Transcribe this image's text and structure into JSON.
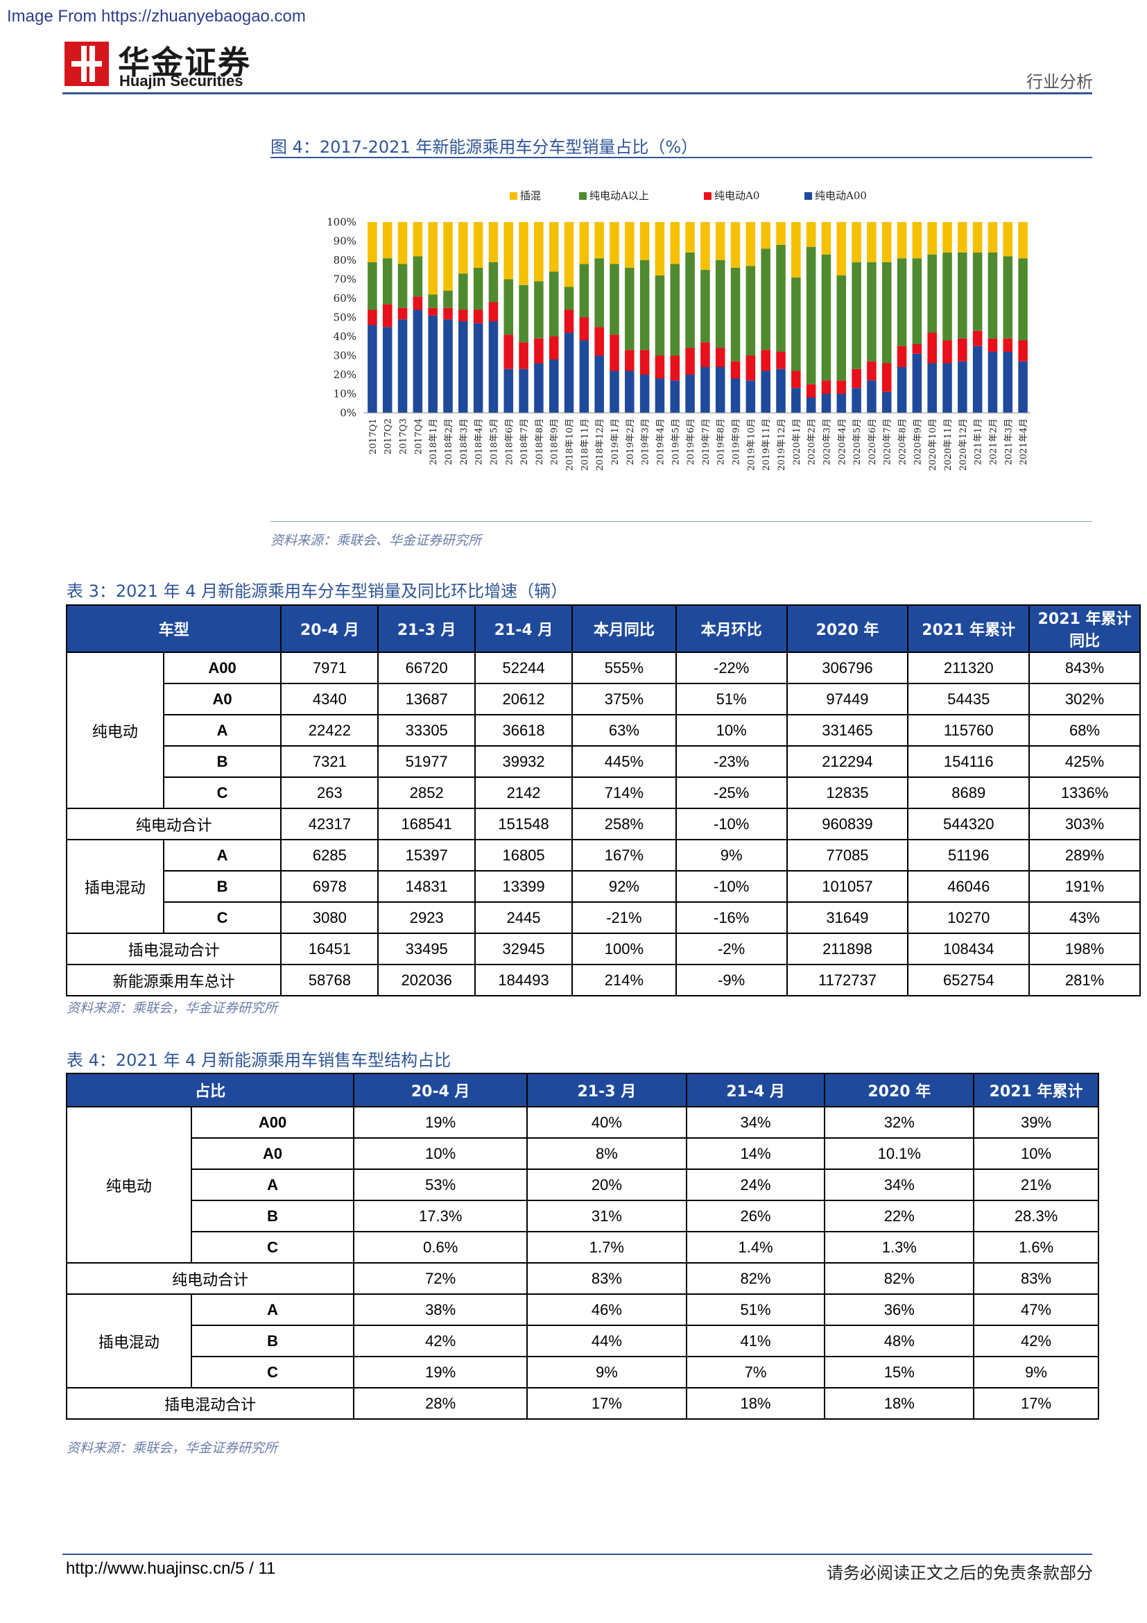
{
  "watermark": "Image From https://zhuanyebaogao.com",
  "brand": {
    "cn": "华金证券",
    "en": "Huajin Securities",
    "section": "行业分析",
    "logo_color": "#d7161c"
  },
  "figure": {
    "caption": "图 4：2017-2021 年新能源乘用车分车型销量占比（%）",
    "source": "资料来源：乘联会、华金证券研究所"
  },
  "chart_data": {
    "type": "bar",
    "stacked": true,
    "categories": [
      "2017Q1",
      "2017Q2",
      "2017Q3",
      "2017Q4",
      "2018年1月",
      "2018年2月",
      "2018年3月",
      "2018年4月",
      "2018年5月",
      "2018年6月",
      "2018年7月",
      "2018年8月",
      "2018年9月",
      "2018年10月",
      "2018年11月",
      "2018年12月",
      "2019年1月",
      "2019年2月",
      "2019年3月",
      "2019年4月",
      "2019年5月",
      "2019年6月",
      "2019年7月",
      "2019年8月",
      "2019年9月",
      "2019年10月",
      "2019年11月",
      "2019年12月",
      "2020年1月",
      "2020年2月",
      "2020年3月",
      "2020年4月",
      "2020年5月",
      "2020年6月",
      "2020年7月",
      "2020年8月",
      "2020年9月",
      "2020年10月",
      "2020年11月",
      "2020年12月",
      "2021年1月",
      "2021年2月",
      "2021年3月",
      "2021年4月"
    ],
    "series": [
      {
        "name": "纯电动A00",
        "color": "#1f4a9c",
        "values": [
          46,
          45,
          49,
          54,
          51,
          49,
          48,
          47,
          48,
          23,
          23,
          26,
          28,
          42,
          38,
          30,
          22,
          22,
          20,
          18,
          17,
          20,
          24,
          24,
          18,
          17,
          22,
          23,
          13,
          8,
          10,
          10,
          13,
          17,
          11,
          24,
          31,
          26,
          26,
          27,
          35,
          32,
          32,
          27
        ]
      },
      {
        "name": "纯电动A0",
        "color": "#e8101b",
        "values": [
          8,
          12,
          6,
          7,
          4,
          6,
          6,
          7,
          10,
          18,
          14,
          13,
          12,
          12,
          12,
          15,
          19,
          11,
          13,
          12,
          13,
          14,
          13,
          10,
          9,
          13,
          11,
          9,
          9,
          7,
          7,
          7,
          10,
          10,
          15,
          11,
          5,
          16,
          12,
          12,
          8,
          7,
          7,
          11
        ]
      },
      {
        "name": "纯电动A以上",
        "color": "#4f8a2f",
        "values": [
          25,
          24,
          23,
          21,
          7,
          9,
          19,
          22,
          21,
          29,
          30,
          30,
          34,
          12,
          28,
          36,
          37,
          43,
          47,
          42,
          48,
          50,
          38,
          46,
          49,
          47,
          53,
          56,
          49,
          72,
          66,
          55,
          56,
          52,
          53,
          46,
          45,
          41,
          46,
          45,
          41,
          45,
          43,
          43
        ]
      },
      {
        "name": "插混",
        "color": "#f5c000",
        "values": [
          21,
          19,
          22,
          18,
          38,
          36,
          27,
          24,
          21,
          30,
          33,
          31,
          26,
          34,
          22,
          19,
          22,
          24,
          20,
          28,
          22,
          16,
          25,
          20,
          24,
          23,
          14,
          12,
          29,
          13,
          17,
          28,
          21,
          21,
          21,
          19,
          19,
          17,
          16,
          16,
          16,
          16,
          18,
          19
        ]
      }
    ],
    "ylim": [
      0,
      100
    ],
    "yticks": [
      "0%",
      "10%",
      "20%",
      "30%",
      "40%",
      "50%",
      "60%",
      "70%",
      "80%",
      "90%",
      "100%"
    ],
    "legend_position": "top",
    "legend_order": [
      "插混",
      "纯电动A以上",
      "纯电动A0",
      "纯电动A00"
    ]
  },
  "table3": {
    "caption": "表 3：2021 年 4 月新能源乘用车分车型销量及同比环比增速（辆）",
    "headers": [
      "车型",
      "20-4 月",
      "21-3 月",
      "21-4 月",
      "本月同比",
      "本月环比",
      "2020 年",
      "2021 年累计",
      "2021 年累计同比"
    ],
    "groups": [
      {
        "label": "纯电动",
        "rows": [
          {
            "sub": "A00",
            "vals": [
              "7971",
              "66720",
              "52244",
              "555%",
              "-22%",
              "306796",
              "211320",
              "843%"
            ]
          },
          {
            "sub": "A0",
            "vals": [
              "4340",
              "13687",
              "20612",
              "375%",
              "51%",
              "97449",
              "54435",
              "302%"
            ]
          },
          {
            "sub": "A",
            "vals": [
              "22422",
              "33305",
              "36618",
              "63%",
              "10%",
              "331465",
              "115760",
              "68%"
            ]
          },
          {
            "sub": "B",
            "vals": [
              "7321",
              "51977",
              "39932",
              "445%",
              "-23%",
              "212294",
              "154116",
              "425%"
            ]
          },
          {
            "sub": "C",
            "vals": [
              "263",
              "2852",
              "2142",
              "714%",
              "-25%",
              "12835",
              "8689",
              "1336%"
            ]
          }
        ],
        "total": {
          "label": "纯电动合计",
          "vals": [
            "42317",
            "168541",
            "151548",
            "258%",
            "-10%",
            "960839",
            "544320",
            "303%"
          ]
        }
      },
      {
        "label": "插电混动",
        "rows": [
          {
            "sub": "A",
            "vals": [
              "6285",
              "15397",
              "16805",
              "167%",
              "9%",
              "77085",
              "51196",
              "289%"
            ]
          },
          {
            "sub": "B",
            "vals": [
              "6978",
              "14831",
              "13399",
              "92%",
              "-10%",
              "101057",
              "46046",
              "191%"
            ]
          },
          {
            "sub": "C",
            "vals": [
              "3080",
              "2923",
              "2445",
              "-21%",
              "-16%",
              "31649",
              "10270",
              "43%"
            ]
          }
        ],
        "total": {
          "label": "插电混动合计",
          "vals": [
            "16451",
            "33495",
            "32945",
            "100%",
            "-2%",
            "211898",
            "108434",
            "198%"
          ]
        }
      }
    ],
    "grand_total": {
      "label": "新能源乘用车总计",
      "vals": [
        "58768",
        "202036",
        "184493",
        "214%",
        "-9%",
        "1172737",
        "652754",
        "281%"
      ]
    },
    "source": "资料来源：乘联会，华金证券研究所"
  },
  "table4": {
    "caption": "表 4：2021 年 4 月新能源乘用车销售车型结构占比",
    "headers": [
      "占比",
      "20-4 月",
      "21-3 月",
      "21-4 月",
      "2020 年",
      "2021 年累计"
    ],
    "groups": [
      {
        "label": "纯电动",
        "rows": [
          {
            "sub": "A00",
            "vals": [
              "19%",
              "40%",
              "34%",
              "32%",
              "39%"
            ]
          },
          {
            "sub": "A0",
            "vals": [
              "10%",
              "8%",
              "14%",
              "10.1%",
              "10%"
            ]
          },
          {
            "sub": "A",
            "vals": [
              "53%",
              "20%",
              "24%",
              "34%",
              "21%"
            ]
          },
          {
            "sub": "B",
            "vals": [
              "17.3%",
              "31%",
              "26%",
              "22%",
              "28.3%"
            ]
          },
          {
            "sub": "C",
            "vals": [
              "0.6%",
              "1.7%",
              "1.4%",
              "1.3%",
              "1.6%"
            ]
          }
        ],
        "total": {
          "label": "纯电动合计",
          "vals": [
            "72%",
            "83%",
            "82%",
            "82%",
            "83%"
          ]
        }
      },
      {
        "label": "插电混动",
        "rows": [
          {
            "sub": "A",
            "vals": [
              "38%",
              "46%",
              "51%",
              "36%",
              "47%"
            ]
          },
          {
            "sub": "B",
            "vals": [
              "42%",
              "44%",
              "41%",
              "48%",
              "42%"
            ]
          },
          {
            "sub": "C",
            "vals": [
              "19%",
              "9%",
              "7%",
              "15%",
              "9%"
            ]
          }
        ],
        "total": {
          "label": "插电混动合计",
          "vals": [
            "28%",
            "17%",
            "18%",
            "18%",
            "17%"
          ]
        }
      }
    ],
    "source": "资料来源：乘联会，华金证券研究所"
  },
  "footer": {
    "url": "http://www.huajinsc.cn/5 / 11",
    "disclaimer": "请务必阅读正文之后的免责条款部分"
  }
}
